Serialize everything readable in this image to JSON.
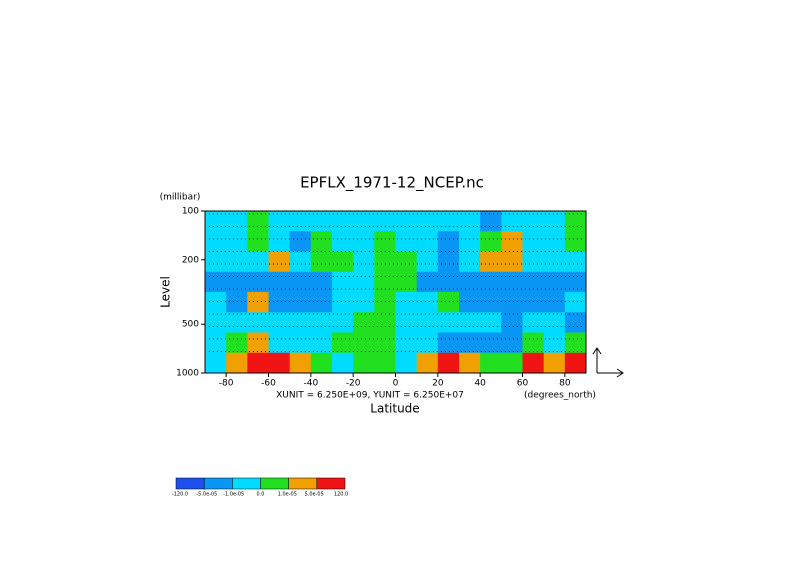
{
  "chart_data": {
    "type": "contour",
    "title": "EPFLX_1971-12_NCEP.nc",
    "y_units": "(millibar)",
    "ylabel": "Level",
    "xlabel": "Latitude",
    "x_units": "(degrees_north)",
    "annotation": "XUNIT = 6.250E+09, YUNIT = 6.250E+07",
    "xlim": [
      -90,
      90
    ],
    "xticks": [
      -80,
      -60,
      -40,
      -20,
      0,
      20,
      40,
      60,
      80
    ],
    "ylim": [
      1000,
      100
    ],
    "yticks": [
      100,
      200,
      500,
      1000
    ],
    "y_log": true,
    "levels": [
      {
        "value": -120,
        "label": "-120.0"
      },
      {
        "value": -5e-05,
        "label": "-5.0e-05"
      },
      {
        "value": -1e-05,
        "label": "-1.0e-05"
      },
      {
        "value": 0,
        "label": "0.0"
      },
      {
        "value": 1e-05,
        "label": "1.0e-05"
      },
      {
        "value": 5e-05,
        "label": "5.0e-05"
      },
      {
        "value": 120,
        "label": "120.0"
      }
    ],
    "colors": [
      "#1e50f0",
      "#0a96f5",
      "#00dcff",
      "#20e020",
      "#f0a000",
      "#f01414"
    ],
    "field": [
      [
        -5e-06,
        -5e-06,
        5e-06,
        -5e-06,
        -5e-06,
        -5e-06,
        -5e-06,
        -5e-06,
        -5e-06,
        -5e-06,
        -5e-06,
        -5e-06,
        -5e-06,
        -3e-05,
        -5e-06,
        -5e-06,
        -5e-06,
        5e-06
      ],
      [
        -5e-06,
        -5e-06,
        5e-06,
        -5e-06,
        -3e-05,
        5e-06,
        -5e-06,
        -5e-06,
        5e-06,
        -5e-06,
        -5e-06,
        -3e-05,
        -5e-06,
        5e-06,
        3e-05,
        -5e-06,
        -5e-06,
        5e-06
      ],
      [
        -5e-06,
        -5e-06,
        -5e-06,
        3e-05,
        -5e-06,
        5e-06,
        5e-06,
        -5e-06,
        5e-06,
        5e-06,
        -5e-06,
        -3e-05,
        -5e-06,
        3e-05,
        3e-05,
        -5e-06,
        -5e-06,
        -5e-06
      ],
      [
        -3e-05,
        -3e-05,
        -3e-05,
        -3e-05,
        -3e-05,
        -3e-05,
        -5e-06,
        -5e-06,
        5e-06,
        5e-06,
        -3e-05,
        -3e-05,
        -3e-05,
        -3e-05,
        -3e-05,
        -3e-05,
        -3e-05,
        -3e-05
      ],
      [
        -5e-06,
        -3e-05,
        3e-05,
        -3e-05,
        -3e-05,
        -3e-05,
        -5e-06,
        -5e-06,
        5e-06,
        -5e-06,
        -5e-06,
        5e-06,
        -3e-05,
        -3e-05,
        -3e-05,
        -3e-05,
        -3e-05,
        -5e-06
      ],
      [
        -5e-06,
        -5e-06,
        -5e-06,
        -5e-06,
        -5e-06,
        -5e-06,
        -5e-06,
        5e-06,
        5e-06,
        -5e-06,
        -5e-06,
        -5e-06,
        -5e-06,
        -5e-06,
        -3e-05,
        -5e-06,
        -5e-06,
        -3e-05
      ],
      [
        -5e-06,
        5e-06,
        3e-05,
        -5e-06,
        -5e-06,
        -5e-06,
        5e-06,
        5e-06,
        5e-06,
        -5e-06,
        -5e-06,
        -3e-05,
        -3e-05,
        -3e-05,
        -3e-05,
        5e-06,
        -5e-06,
        5e-06
      ],
      [
        -5e-06,
        3e-05,
        0.0001,
        0.0001,
        3e-05,
        5e-06,
        -5e-06,
        5e-06,
        5e-06,
        -5e-06,
        3e-05,
        0.0001,
        3e-05,
        5e-06,
        5e-06,
        0.0001,
        3e-05,
        0.0001
      ]
    ]
  }
}
